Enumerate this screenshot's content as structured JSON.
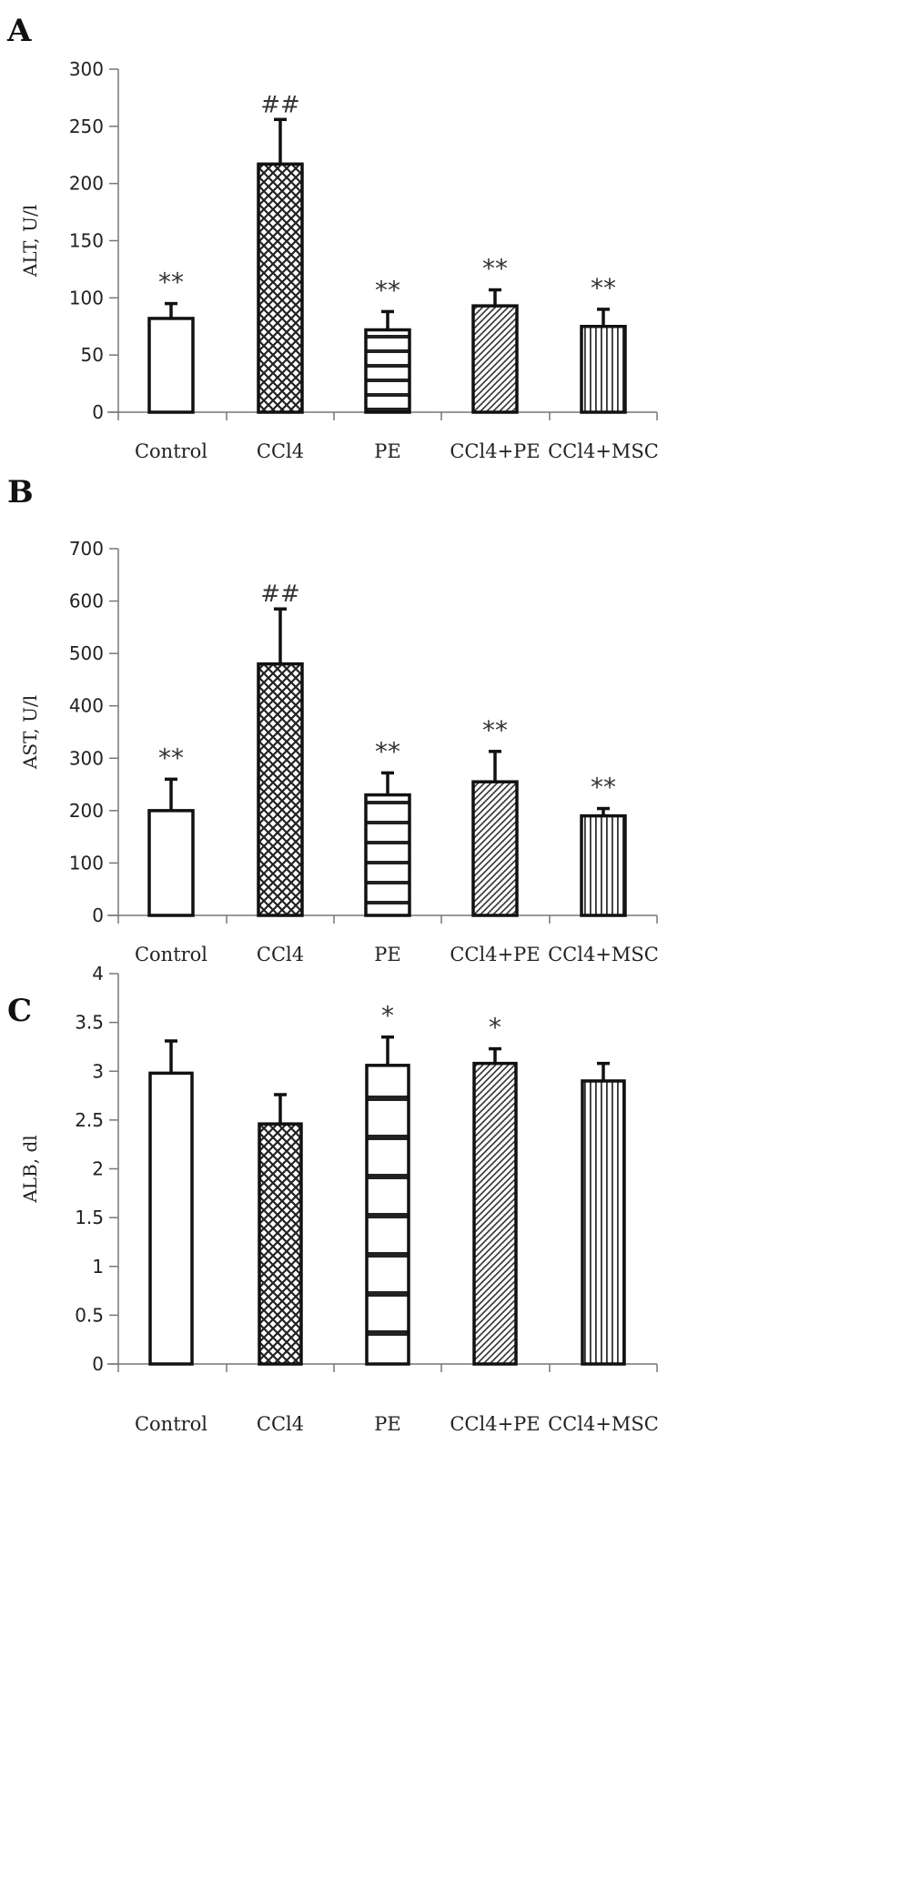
{
  "panels": [
    {
      "letter": "A"
    },
    {
      "letter": "B"
    },
    {
      "letter": "C"
    }
  ],
  "chart_data": [
    {
      "type": "bar",
      "title": "",
      "ylabel": "ALT, U/l",
      "xlabel": "",
      "categories": [
        "Control",
        "CCl4",
        "PE",
        "CCl4+PE",
        "CCl4+MSC"
      ],
      "values": [
        82,
        217,
        72,
        93,
        75
      ],
      "errors": [
        13,
        39,
        16,
        14,
        15
      ],
      "annotations": [
        "**",
        "##",
        "**",
        "**",
        "**"
      ],
      "yticks": [
        "0",
        "50",
        "100",
        "150",
        "200",
        "250",
        "300"
      ],
      "ylim": [
        0,
        300
      ],
      "patterns": [
        "none",
        "lattice",
        "horizontal",
        "diagonal",
        "vertical"
      ],
      "grid": false,
      "legend": "none"
    },
    {
      "type": "bar",
      "title": "",
      "ylabel": "AST, U/l",
      "xlabel": "",
      "categories": [
        "Control",
        "CCl4",
        "PE",
        "CCl4+PE",
        "CCl4+MSC"
      ],
      "values": [
        200,
        480,
        230,
        255,
        190
      ],
      "errors": [
        60,
        105,
        42,
        58,
        14
      ],
      "annotations": [
        "**",
        "##",
        "**",
        "**",
        "**"
      ],
      "yticks": [
        "0",
        "100",
        "200",
        "300",
        "400",
        "500",
        "600",
        "700"
      ],
      "ylim": [
        0,
        700
      ],
      "patterns": [
        "none",
        "lattice",
        "horizontal",
        "diagonal",
        "vertical"
      ],
      "grid": false,
      "legend": "none"
    },
    {
      "type": "bar",
      "title": "",
      "ylabel": "ALB, dl",
      "xlabel": "",
      "categories": [
        "Control",
        "CCl4",
        "PE",
        "CCl4+PE",
        "CCl4+MSC"
      ],
      "values": [
        2.98,
        2.46,
        3.06,
        3.08,
        2.9
      ],
      "errors": [
        0.33,
        0.3,
        0.29,
        0.15,
        0.18
      ],
      "annotations": [
        "",
        "",
        "*",
        "*",
        ""
      ],
      "yticks": [
        "0",
        "0.5",
        "1",
        "1.5",
        "2",
        "2.5",
        "3",
        "3.5",
        "4"
      ],
      "ylim": [
        0,
        4
      ],
      "patterns": [
        "none",
        "lattice",
        "horizontal",
        "diagonal",
        "vertical"
      ],
      "grid": false,
      "legend": "none"
    }
  ]
}
